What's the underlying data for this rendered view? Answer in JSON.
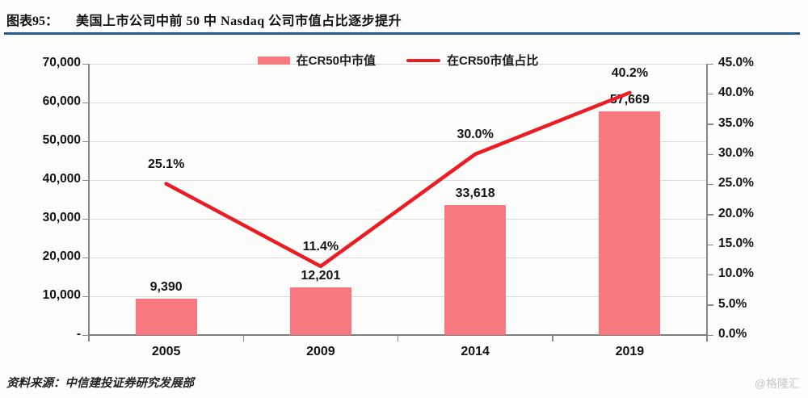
{
  "header": {
    "label": "图表95：",
    "title": "美国上市公司中前 50 中 Nasdaq 公司市值占比逐步提升",
    "rule_color": "#275d8e"
  },
  "legend": {
    "items": [
      {
        "label": "在CR50中市值",
        "type": "bar"
      },
      {
        "label": "在CR50市值占比",
        "type": "line"
      }
    ]
  },
  "chart_data": {
    "type": "bar",
    "subtype": "bar+line combo",
    "categories": [
      "2005",
      "2009",
      "2014",
      "2019"
    ],
    "series": [
      {
        "name": "在CR50中市值",
        "type": "bar",
        "axis": "left",
        "values": [
          9390,
          12201,
          33618,
          57669
        ],
        "labels": [
          "9,390",
          "12,201",
          "33,618",
          "57,669"
        ],
        "color": "#f7797f"
      },
      {
        "name": "在CR50市值占比",
        "type": "line",
        "axis": "right",
        "values": [
          25.1,
          11.4,
          30.0,
          40.2
        ],
        "labels": [
          "25.1%",
          "11.4%",
          "30.0%",
          "40.2%"
        ],
        "color": "#ec1c24"
      }
    ],
    "left_axis": {
      "min": 0,
      "max": 70000,
      "step": 10000,
      "tick_labels": [
        "70,000",
        "60,000",
        "50,000",
        "40,000",
        "30,000",
        "20,000",
        "10,000",
        "-"
      ]
    },
    "right_axis": {
      "min": 0,
      "max": 45,
      "step": 5,
      "tick_labels": [
        "45.0%",
        "40.0%",
        "35.0%",
        "30.0%",
        "25.0%",
        "20.0%",
        "15.0%",
        "10.0%",
        "5.0%",
        "0.0%"
      ]
    },
    "grid": true,
    "gridline_color": "#d9d9d9",
    "legend_position": "top"
  },
  "footer": {
    "source": "资料来源：中信建投证券研究发展部",
    "watermark": "@格隆汇"
  }
}
